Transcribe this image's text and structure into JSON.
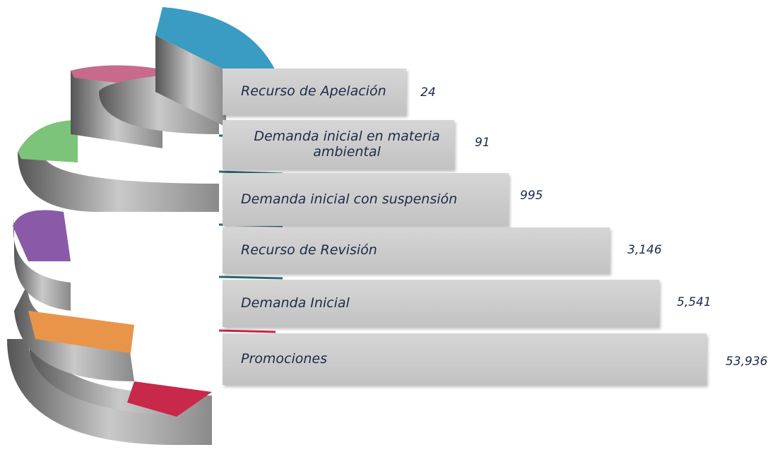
{
  "items": [
    {
      "label": "Recurso de Apelación",
      "value": "24"
    },
    {
      "label": "Demanda inicial en materia ambiental",
      "value": "91"
    },
    {
      "label": "Demanda inicial con suspensión",
      "value": "995"
    },
    {
      "label": "Recurso de Revisión",
      "value": "3,146"
    },
    {
      "label": "Demanda Inicial",
      "value": "5,541"
    },
    {
      "label": "Promociones",
      "value": "53,936"
    }
  ]
}
